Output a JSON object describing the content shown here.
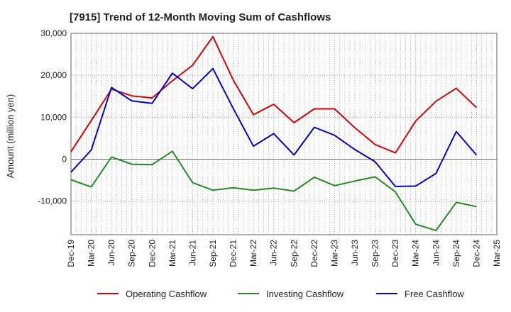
{
  "chart_data": {
    "type": "line",
    "title": "[7915]  Trend of 12-Month Moving Sum of Cashflows",
    "xlabel": "",
    "ylabel": "Amount (million yen)",
    "ylim": [
      -18000,
      30000
    ],
    "yticks": [
      30000,
      20000,
      10000,
      0,
      -10000
    ],
    "ytick_labels": [
      "30,000",
      "20,000",
      "10,000",
      "0",
      "-10,000"
    ],
    "categories": [
      "Dec-19",
      "Mar-20",
      "Jun-20",
      "Sep-20",
      "Dec-20",
      "Mar-21",
      "Jun-21",
      "Sep-21",
      "Dec-21",
      "Mar-22",
      "Jun-22",
      "Sep-22",
      "Dec-22",
      "Mar-23",
      "Jun-23",
      "Sep-23",
      "Dec-23",
      "Mar-24",
      "Jun-24",
      "Sep-24",
      "Dec-24",
      "Mar-25"
    ],
    "grid": true,
    "legend_position": "bottom",
    "series": [
      {
        "name": "Operating Cashflow",
        "color": "#e00000",
        "values": [
          1800,
          9200,
          16700,
          15100,
          14600,
          18700,
          22400,
          29200,
          18900,
          10600,
          13100,
          8700,
          12000,
          12000,
          7500,
          3500,
          1500,
          9100,
          13800,
          16900,
          12300,
          null
        ]
      },
      {
        "name": "Investing Cashflow",
        "color": "#228b22",
        "values": [
          -4900,
          -6600,
          500,
          -1200,
          -1300,
          1900,
          -5600,
          -7400,
          -6800,
          -7400,
          -6900,
          -7600,
          -4300,
          -6300,
          -5200,
          -4200,
          -7800,
          -15500,
          -17000,
          -10300,
          -11300,
          null
        ]
      },
      {
        "name": "Free Cashflow",
        "color": "#0000dd",
        "values": [
          -3100,
          2200,
          17100,
          13900,
          13300,
          20500,
          16800,
          21600,
          12100,
          3100,
          6100,
          1000,
          7600,
          5700,
          2300,
          -600,
          -6500,
          -6400,
          -3400,
          6600,
          1000,
          null
        ]
      }
    ]
  }
}
